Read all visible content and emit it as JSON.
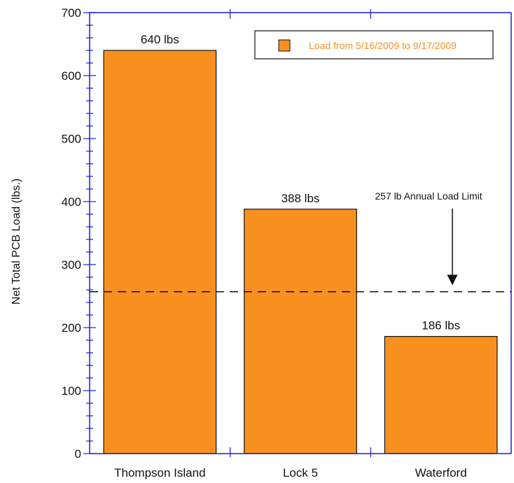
{
  "chart_data": {
    "type": "bar",
    "categories": [
      "Thompson Island",
      "Lock 5",
      "Waterford"
    ],
    "series": [
      {
        "name": "Load from 5/16/2009 to 9/17/2009",
        "values": [
          640,
          388,
          186
        ]
      }
    ],
    "data_labels": [
      "640 lbs",
      "388 lbs",
      "186 lbs"
    ],
    "ylabel": "Net Total PCB Load (lbs.)",
    "xlabel": "",
    "title": "",
    "ylim": [
      0,
      700
    ],
    "yticks": [
      0,
      100,
      200,
      300,
      400,
      500,
      600,
      700
    ],
    "reference_line": {
      "value": 257,
      "label": "257 lb Annual Load Limit",
      "style": "dashed"
    },
    "legend_position": "top-right",
    "grid": false,
    "colors": {
      "bar": "#F7901E",
      "bar_stroke": "#111111",
      "axis": "#1a1adb",
      "legend_text": "#F7901E",
      "reference": "#111111"
    }
  }
}
